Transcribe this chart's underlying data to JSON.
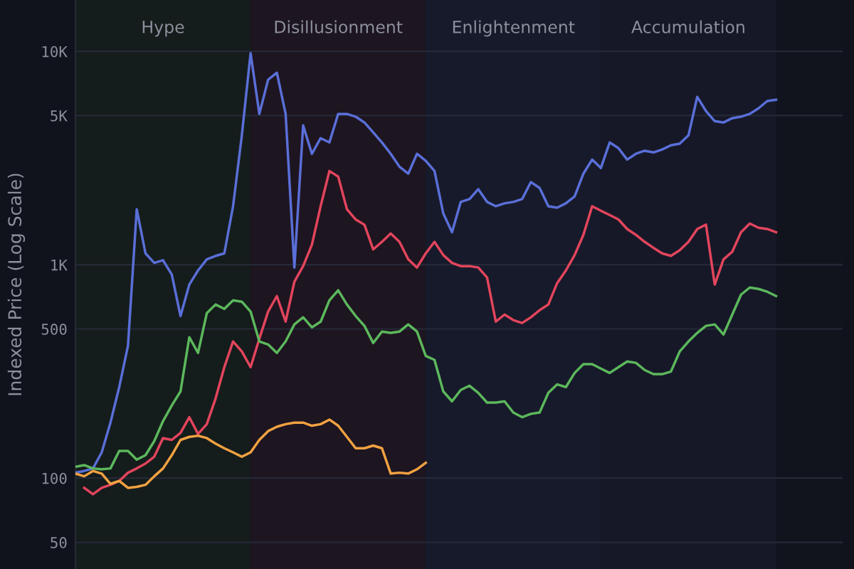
{
  "chart_data": {
    "type": "line",
    "ylabel": "Indexed Price (Log Scale)",
    "annotations": [
      "Hype",
      "Disillusionment",
      "Enlightenment",
      "Accumulation"
    ],
    "categories": [
      null,
      null,
      null,
      null,
      null,
      null,
      null,
      null,
      null,
      null,
      null,
      null,
      null,
      null,
      null,
      null,
      null,
      null,
      null,
      null,
      null,
      null,
      null,
      null,
      null,
      null,
      null,
      null,
      null,
      null,
      null,
      null,
      null,
      null,
      null,
      null,
      null,
      null,
      null,
      null,
      null,
      null,
      null,
      null,
      null,
      null,
      null,
      null,
      null,
      null,
      null,
      null,
      null,
      null,
      null,
      null,
      null,
      null,
      null,
      null,
      null,
      null,
      null,
      null,
      null,
      null,
      null,
      null,
      null,
      null,
      null,
      null,
      null,
      null,
      null,
      null,
      null,
      null,
      null,
      null,
      null
    ],
    "series": [
      {
        "color": "#5a6fd8",
        "values": [
          106,
          108,
          111,
          132,
          182,
          267,
          417,
          1820,
          1130,
          1020,
          1050,
          900,
          575,
          807,
          940,
          1060,
          1100,
          1130,
          1880,
          4040,
          9800,
          5090,
          7360,
          7940,
          5090,
          970,
          4500,
          3310,
          3920,
          3740,
          5090,
          5090,
          4940,
          4640,
          4170,
          3740,
          3310,
          2880,
          2670,
          3310,
          3070,
          2750,
          1740,
          1420,
          1970,
          2030,
          2260,
          1970,
          1880,
          1940,
          1970,
          2030,
          2440,
          2290,
          1880,
          1850,
          1940,
          2090,
          2670,
          3110,
          2840,
          3740,
          3520,
          3110,
          3310,
          3420,
          3360,
          3470,
          3630,
          3690,
          4040,
          6120,
          5250,
          4710,
          4640,
          4860,
          4940,
          5090,
          5410,
          5850,
          5930
        ]
      },
      {
        "color": "#e2455c",
        "values": [
          null,
          90,
          84,
          90,
          93,
          97,
          106,
          111,
          117,
          126,
          154,
          151,
          163,
          193,
          161,
          179,
          236,
          331,
          437,
          392,
          331,
          450,
          603,
          713,
          541,
          832,
          985,
          1240,
          1880,
          2750,
          2590,
          1820,
          1630,
          1540,
          1180,
          1280,
          1400,
          1280,
          1060,
          970,
          1130,
          1280,
          1110,
          1020,
          985,
          985,
          970,
          871,
          541,
          584,
          550,
          533,
          567,
          612,
          651,
          819,
          940,
          1110,
          1380,
          1880,
          1790,
          1710,
          1630,
          1470,
          1380,
          1280,
          1200,
          1130,
          1100,
          1170,
          1280,
          1470,
          1540,
          807,
          1060,
          1150,
          1420,
          1560,
          1490,
          1470,
          1420
        ]
      },
      {
        "color": "#5cb85c",
        "values": [
          113,
          115,
          111,
          110,
          111,
          134,
          134,
          122,
          128,
          149,
          185,
          219,
          255,
          457,
          386,
          593,
          651,
          621,
          681,
          671,
          603,
          437,
          423,
          386,
          437,
          525,
          567,
          509,
          541,
          681,
          759,
          651,
          575,
          517,
          430,
          486,
          479,
          486,
          525,
          486,
          374,
          358,
          255,
          229,
          259,
          271,
          251,
          226,
          226,
          229,
          203,
          193,
          200,
          203,
          251,
          275,
          267,
          311,
          342,
          342,
          326,
          311,
          331,
          352,
          347,
          321,
          307,
          307,
          316,
          392,
          437,
          479,
          517,
          525,
          471,
          584,
          724,
          782,
          770,
          747,
          713
        ]
      },
      {
        "color": "#f2a241",
        "values": [
          105,
          102,
          108,
          105,
          94,
          97,
          90,
          91,
          93,
          102,
          111,
          128,
          151,
          156,
          158,
          154,
          145,
          138,
          132,
          126,
          132,
          151,
          166,
          174,
          179,
          182,
          182,
          176,
          179,
          188,
          176,
          156,
          138,
          138,
          142,
          138,
          105,
          106,
          105,
          110,
          118,
          null,
          null,
          null,
          null,
          null,
          null,
          null,
          null,
          null,
          null,
          null,
          null,
          null,
          null,
          null,
          null,
          null,
          null,
          null,
          null,
          null,
          null,
          null,
          null,
          null,
          null,
          null,
          null,
          null,
          null,
          null,
          null,
          null,
          null,
          null,
          null,
          null,
          null,
          null,
          null
        ]
      }
    ],
    "log": true,
    "ylim": [
      37.5,
      17400
    ],
    "yticks": [
      50,
      100,
      500,
      {
        "value": 1000,
        "label": "1K"
      },
      {
        "value": 5000,
        "label": "5K"
      },
      {
        "value": 10000,
        "label": "10K"
      }
    ],
    "grid": "y",
    "tick_labels": "y",
    "line_style": "solid"
  }
}
